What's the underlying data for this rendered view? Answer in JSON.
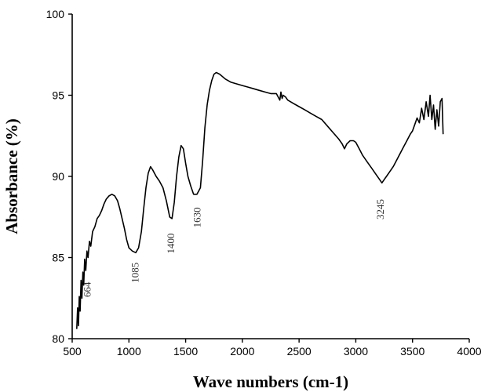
{
  "chart_data": {
    "type": "line",
    "title": "",
    "xlabel": "Wave numbers (cm-1)",
    "ylabel": "Absorbance (%)",
    "xlim": [
      500,
      4000
    ],
    "ylim": [
      80,
      100
    ],
    "x_ticks": [
      500,
      1000,
      1500,
      2000,
      2500,
      3000,
      3500,
      4000
    ],
    "y_ticks": [
      80,
      85,
      90,
      95,
      100
    ],
    "grid": false,
    "legend": "none",
    "series": [
      {
        "color": "#000000",
        "points": [
          [
            540,
            80.6
          ],
          [
            548,
            81.9
          ],
          [
            555,
            80.8
          ],
          [
            562,
            82.6
          ],
          [
            570,
            81.7
          ],
          [
            578,
            83.6
          ],
          [
            586,
            82.5
          ],
          [
            594,
            84.1
          ],
          [
            602,
            83.3
          ],
          [
            610,
            84.9
          ],
          [
            620,
            84.2
          ],
          [
            630,
            85.4
          ],
          [
            640,
            85.0
          ],
          [
            652,
            86.0
          ],
          [
            664,
            85.7
          ],
          [
            680,
            86.6
          ],
          [
            700,
            86.9
          ],
          [
            720,
            87.4
          ],
          [
            740,
            87.6
          ],
          [
            760,
            87.9
          ],
          [
            780,
            88.3
          ],
          [
            800,
            88.6
          ],
          [
            825,
            88.8
          ],
          [
            850,
            88.9
          ],
          [
            875,
            88.8
          ],
          [
            900,
            88.5
          ],
          [
            920,
            88.0
          ],
          [
            940,
            87.4
          ],
          [
            960,
            86.8
          ],
          [
            980,
            86.1
          ],
          [
            1000,
            85.6
          ],
          [
            1030,
            85.4
          ],
          [
            1060,
            85.3
          ],
          [
            1085,
            85.6
          ],
          [
            1110,
            86.6
          ],
          [
            1130,
            88.0
          ],
          [
            1150,
            89.3
          ],
          [
            1170,
            90.2
          ],
          [
            1190,
            90.6
          ],
          [
            1210,
            90.4
          ],
          [
            1240,
            90.0
          ],
          [
            1270,
            89.7
          ],
          [
            1300,
            89.3
          ],
          [
            1330,
            88.5
          ],
          [
            1360,
            87.5
          ],
          [
            1380,
            87.4
          ],
          [
            1400,
            88.4
          ],
          [
            1420,
            90.0
          ],
          [
            1440,
            91.2
          ],
          [
            1460,
            91.9
          ],
          [
            1480,
            91.7
          ],
          [
            1500,
            90.8
          ],
          [
            1520,
            90.0
          ],
          [
            1545,
            89.4
          ],
          [
            1570,
            88.9
          ],
          [
            1600,
            88.9
          ],
          [
            1630,
            89.3
          ],
          [
            1650,
            91.0
          ],
          [
            1670,
            93.0
          ],
          [
            1690,
            94.4
          ],
          [
            1710,
            95.3
          ],
          [
            1730,
            95.9
          ],
          [
            1750,
            96.3
          ],
          [
            1770,
            96.4
          ],
          [
            1800,
            96.3
          ],
          [
            1850,
            96.0
          ],
          [
            1900,
            95.8
          ],
          [
            1950,
            95.7
          ],
          [
            2000,
            95.6
          ],
          [
            2050,
            95.5
          ],
          [
            2100,
            95.4
          ],
          [
            2150,
            95.3
          ],
          [
            2200,
            95.2
          ],
          [
            2250,
            95.1
          ],
          [
            2300,
            95.1
          ],
          [
            2330,
            94.7
          ],
          [
            2340,
            95.2
          ],
          [
            2350,
            94.8
          ],
          [
            2360,
            95.0
          ],
          [
            2380,
            94.9
          ],
          [
            2400,
            94.7
          ],
          [
            2450,
            94.5
          ],
          [
            2500,
            94.3
          ],
          [
            2550,
            94.1
          ],
          [
            2600,
            93.9
          ],
          [
            2650,
            93.7
          ],
          [
            2700,
            93.5
          ],
          [
            2750,
            93.1
          ],
          [
            2800,
            92.7
          ],
          [
            2850,
            92.3
          ],
          [
            2880,
            92.0
          ],
          [
            2900,
            91.7
          ],
          [
            2920,
            92.0
          ],
          [
            2950,
            92.2
          ],
          [
            2980,
            92.2
          ],
          [
            3000,
            92.1
          ],
          [
            3030,
            91.7
          ],
          [
            3060,
            91.3
          ],
          [
            3100,
            90.9
          ],
          [
            3140,
            90.5
          ],
          [
            3180,
            90.1
          ],
          [
            3210,
            89.8
          ],
          [
            3230,
            89.6
          ],
          [
            3250,
            89.8
          ],
          [
            3270,
            90.0
          ],
          [
            3300,
            90.3
          ],
          [
            3330,
            90.6
          ],
          [
            3360,
            91.0
          ],
          [
            3390,
            91.4
          ],
          [
            3420,
            91.8
          ],
          [
            3450,
            92.2
          ],
          [
            3480,
            92.6
          ],
          [
            3500,
            92.8
          ],
          [
            3520,
            93.2
          ],
          [
            3540,
            93.6
          ],
          [
            3560,
            93.3
          ],
          [
            3580,
            94.2
          ],
          [
            3600,
            93.5
          ],
          [
            3620,
            94.6
          ],
          [
            3640,
            93.7
          ],
          [
            3655,
            95.0
          ],
          [
            3670,
            93.5
          ],
          [
            3685,
            94.4
          ],
          [
            3700,
            92.9
          ],
          [
            3715,
            94.1
          ],
          [
            3730,
            93.1
          ],
          [
            3745,
            94.6
          ],
          [
            3760,
            94.8
          ],
          [
            3770,
            92.6
          ]
        ]
      }
    ],
    "annotations": [
      {
        "text": "664",
        "x": 664,
        "y": 83.5
      },
      {
        "text": "1085",
        "x": 1085,
        "y": 84.7
      },
      {
        "text": "1400",
        "x": 1400,
        "y": 86.5
      },
      {
        "text": "1630",
        "x": 1630,
        "y": 88.1
      },
      {
        "text": "3245",
        "x": 3245,
        "y": 88.6
      }
    ]
  }
}
